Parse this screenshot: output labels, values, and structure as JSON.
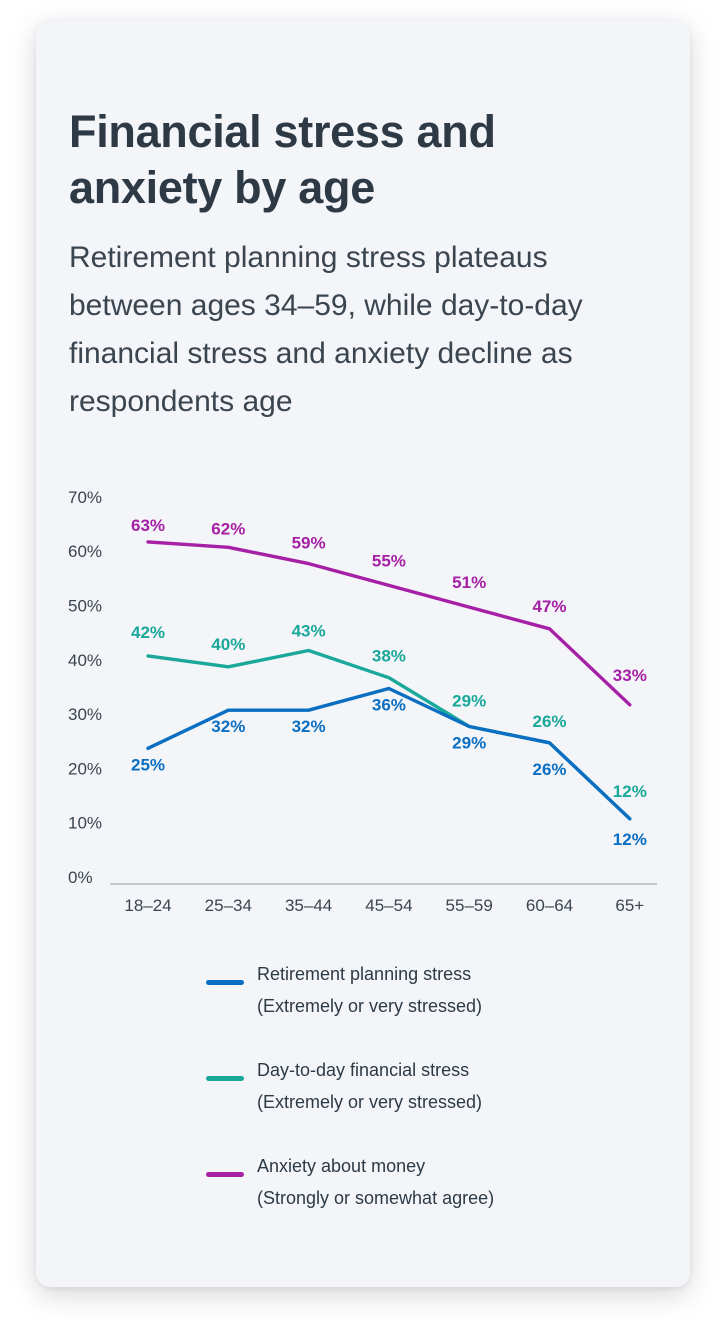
{
  "card": {
    "title": "Financial stress and anxiety by age",
    "subtitle": "Retirement planning stress plateaus between ages 34–59, while day-to-day financial stress and anxiety decline as respondents age"
  },
  "chart_data": {
    "type": "line",
    "title": "Financial stress and anxiety by age",
    "subtitle": "Retirement planning stress plateaus between ages 34–59, while day-to-day financial stress and anxiety decline as respondents age",
    "xlabel": "",
    "ylabel": "",
    "categories": [
      "18–24",
      "25–34",
      "35–44",
      "45–54",
      "55–59",
      "60–64",
      "65+"
    ],
    "ylim": [
      0,
      70
    ],
    "yticks": [
      0,
      10,
      20,
      30,
      40,
      50,
      60,
      70
    ],
    "ytick_labels": [
      "0%",
      "10%",
      "20%",
      "30%",
      "40%",
      "50%",
      "60%",
      "70%"
    ],
    "grid": false,
    "legend_position": "bottom",
    "series": [
      {
        "name": "Retirement planning stress",
        "note": "(Extremely or very stressed)",
        "color": "#0a6ec2",
        "values": [
          25,
          32,
          32,
          36,
          29,
          26,
          12
        ],
        "labels": [
          "25%",
          "32%",
          "32%",
          "36%",
          "29%",
          "26%",
          "12%"
        ]
      },
      {
        "name": "Day-to-day financial stress",
        "note": "(Extremely or very stressed)",
        "color": "#1aa89a",
        "values": [
          42,
          40,
          43,
          38,
          29,
          26,
          12
        ],
        "labels": [
          "42%",
          "40%",
          "43%",
          "38%",
          "29%",
          "26%",
          "12%"
        ]
      },
      {
        "name": "Anxiety about money",
        "note": "(Strongly or somewhat agree)",
        "color": "#a620a6",
        "values": [
          63,
          62,
          59,
          55,
          51,
          47,
          33
        ],
        "labels": [
          "63%",
          "62%",
          "59%",
          "55%",
          "51%",
          "47%",
          "33%"
        ]
      }
    ]
  }
}
